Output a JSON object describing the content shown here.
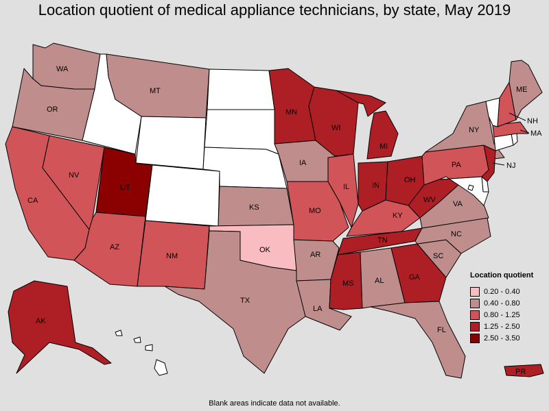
{
  "title": "Location quotient of medical appliance technicians, by state, May 2019",
  "footnote": "Blank areas indicate data not available.",
  "colors": {
    "na": "#ffffff",
    "c1": "#f8bcc1",
    "c2": "#c08d8d",
    "c3": "#d05458",
    "c4": "#ad1f25",
    "c5": "#8b0000"
  },
  "legend": {
    "title": "Location quotient",
    "items": [
      {
        "range": "0.20 - 0.40",
        "class": "c1"
      },
      {
        "range": "0.40 - 0.80",
        "class": "c2"
      },
      {
        "range": "0.80 - 1.25",
        "class": "c3"
      },
      {
        "range": "1.25 - 2.50",
        "class": "c4"
      },
      {
        "range": "2.50 - 3.50",
        "class": "c5"
      }
    ]
  },
  "states": {
    "WA": {
      "label": "WA",
      "class": "c2"
    },
    "OR": {
      "label": "OR",
      "class": "c2"
    },
    "CA": {
      "label": "CA",
      "class": "c3"
    },
    "NV": {
      "label": "NV",
      "class": "c3"
    },
    "ID": {
      "label": "",
      "class": "na"
    },
    "MT": {
      "label": "MT",
      "class": "c2"
    },
    "WY": {
      "label": "",
      "class": "na"
    },
    "UT": {
      "label": "UT",
      "class": "c5"
    },
    "AZ": {
      "label": "AZ",
      "class": "c3"
    },
    "CO": {
      "label": "",
      "class": "na"
    },
    "NM": {
      "label": "NM",
      "class": "c3"
    },
    "ND": {
      "label": "",
      "class": "na"
    },
    "SD": {
      "label": "",
      "class": "na"
    },
    "NE": {
      "label": "",
      "class": "na"
    },
    "KS": {
      "label": "KS",
      "class": "c2"
    },
    "OK": {
      "label": "OK",
      "class": "c1"
    },
    "TX": {
      "label": "TX",
      "class": "c2"
    },
    "MN": {
      "label": "MN",
      "class": "c4"
    },
    "IA": {
      "label": "IA",
      "class": "c2"
    },
    "MO": {
      "label": "MO",
      "class": "c3"
    },
    "AR": {
      "label": "AR",
      "class": "c2"
    },
    "LA": {
      "label": "LA",
      "class": "c2"
    },
    "WI": {
      "label": "WI",
      "class": "c4"
    },
    "IL": {
      "label": "IL",
      "class": "c3"
    },
    "MI": {
      "label": "MI",
      "class": "c4"
    },
    "IN": {
      "label": "IN",
      "class": "c4"
    },
    "OH": {
      "label": "OH",
      "class": "c4"
    },
    "KY": {
      "label": "KY",
      "class": "c3"
    },
    "TN": {
      "label": "TN",
      "class": "c4"
    },
    "MS": {
      "label": "MS",
      "class": "c4"
    },
    "AL": {
      "label": "AL",
      "class": "c2"
    },
    "GA": {
      "label": "GA",
      "class": "c4"
    },
    "FL": {
      "label": "FL",
      "class": "c2"
    },
    "SC": {
      "label": "SC",
      "class": "c2"
    },
    "NC": {
      "label": "NC",
      "class": "c2"
    },
    "VA": {
      "label": "VA",
      "class": "c2"
    },
    "WV": {
      "label": "WV",
      "class": "c4"
    },
    "PA": {
      "label": "PA",
      "class": "c3"
    },
    "NY": {
      "label": "NY",
      "class": "c2"
    },
    "NJ": {
      "label": "NJ",
      "class": "c4"
    },
    "VT": {
      "label": "",
      "class": "na"
    },
    "NH": {
      "label": "NH",
      "class": "c3"
    },
    "ME": {
      "label": "ME",
      "class": "c2"
    },
    "MA": {
      "label": "MA",
      "class": "c3"
    },
    "CT": {
      "label": "",
      "class": "na"
    },
    "RI": {
      "label": "",
      "class": "na"
    },
    "DE": {
      "label": "",
      "class": "na"
    },
    "MD": {
      "label": "",
      "class": "na"
    },
    "DC": {
      "label": "",
      "class": "na"
    },
    "AK": {
      "label": "AK",
      "class": "c4"
    },
    "HI": {
      "label": "",
      "class": "na"
    },
    "PR": {
      "label": "PR",
      "class": "c4"
    }
  }
}
